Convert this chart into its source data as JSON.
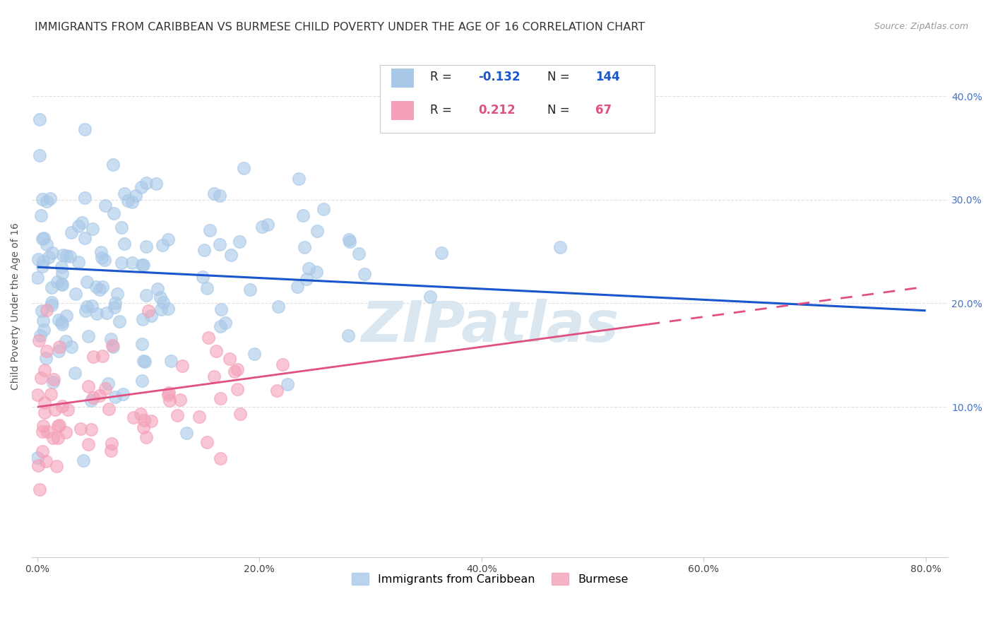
{
  "title": "IMMIGRANTS FROM CARIBBEAN VS BURMESE CHILD POVERTY UNDER THE AGE OF 16 CORRELATION CHART",
  "source": "Source: ZipAtlas.com",
  "ylabel_label": "Child Poverty Under the Age of 16",
  "legend_label1": "Immigrants from Caribbean",
  "legend_label2": "Burmese",
  "R1": -0.132,
  "N1": 144,
  "R2": 0.212,
  "N2": 67,
  "color_blue": "#a8c8e8",
  "color_pink": "#f4a0b8",
  "trend_blue": "#1a56cc",
  "trend_pink": "#e05080",
  "bg_color": "#ffffff",
  "title_color": "#333333",
  "source_color": "#999999",
  "watermark_color": "#dae6f0",
  "xlim": [
    -0.005,
    0.82
  ],
  "ylim": [
    -0.045,
    0.44
  ],
  "title_fontsize": 11.5,
  "axis_fontsize": 10,
  "tick_color": "#444444",
  "right_tick_color": "#4472c4",
  "grid_color": "#e0e0e0"
}
